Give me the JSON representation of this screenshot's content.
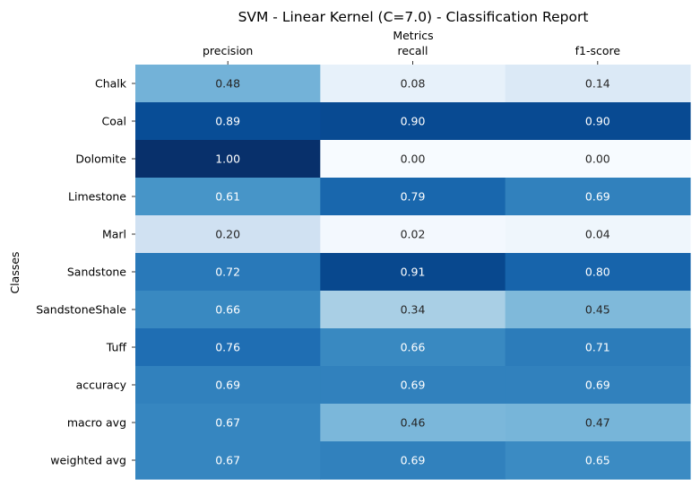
{
  "chart_data": {
    "type": "heatmap",
    "title": "SVM - Linear Kernel (C=7.0) - Classification Report",
    "xlabel": "Metrics",
    "ylabel": "Classes",
    "columns": [
      "precision",
      "recall",
      "f1-score"
    ],
    "rows": [
      "Chalk",
      "Coal",
      "Dolomite",
      "Limestone",
      "Marl",
      "Sandstone",
      "SandstoneShale",
      "Tuff",
      "accuracy",
      "macro avg",
      "weighted avg"
    ],
    "values": [
      [
        0.48,
        0.08,
        0.14
      ],
      [
        0.89,
        0.9,
        0.9
      ],
      [
        1.0,
        0.0,
        0.0
      ],
      [
        0.61,
        0.79,
        0.69
      ],
      [
        0.2,
        0.02,
        0.04
      ],
      [
        0.72,
        0.91,
        0.8
      ],
      [
        0.66,
        0.34,
        0.45
      ],
      [
        0.76,
        0.66,
        0.71
      ],
      [
        0.69,
        0.69,
        0.69
      ],
      [
        0.67,
        0.46,
        0.47
      ],
      [
        0.67,
        0.69,
        0.65
      ]
    ],
    "value_range": [
      0,
      1
    ],
    "colormap": "Blues",
    "grid": false,
    "legend": "none",
    "x_axis_position": "top"
  }
}
